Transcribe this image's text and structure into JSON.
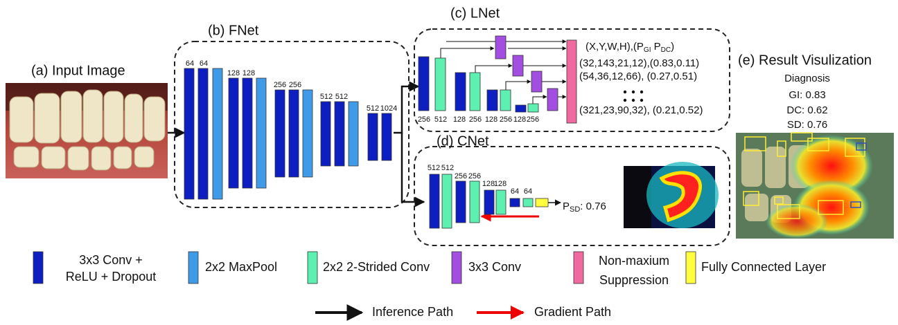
{
  "panels": {
    "input": "(a) Input Image",
    "fnet": "(b) FNet",
    "lnet": "(c) LNet",
    "cnet": "(d) CNet",
    "result": "(e) Result Visulization"
  },
  "fnet": {
    "channels": [
      "64",
      "64",
      "128",
      "128",
      "256",
      "256",
      "512",
      "512",
      "512",
      "1024"
    ]
  },
  "lnet": {
    "channels": [
      "256",
      "512",
      "128",
      "256",
      "128",
      "256",
      "128",
      "256"
    ],
    "output_header": {
      "open": "(X,Y,W,H),(",
      "p1": "P",
      "s1": "GI",
      "p2": " P",
      "s2": "DC",
      "close": ")"
    },
    "outputs": [
      "(32,143,21,12),(0.83,0.11)",
      "(54,36,12,66), (0.27,0.51)",
      "(321,23,90,32), (0.21,0.52)"
    ]
  },
  "cnet": {
    "channels": [
      "512",
      "512",
      "256",
      "256",
      "128",
      "128",
      "64",
      "64"
    ],
    "score": {
      "p": "P",
      "sub": "SD",
      "value": ": 0.76"
    }
  },
  "result": {
    "heading": "Diagnosis",
    "scores": [
      "GI: 0.83",
      "DC: 0.62",
      "SD: 0.76"
    ]
  },
  "legend": {
    "conv_relu": [
      "3x3 Conv +",
      "ReLU + Dropout"
    ],
    "maxpool": "2x2 MaxPool",
    "strided": "2x2 2-Strided Conv",
    "conv": "3x3 Conv",
    "nms": [
      "Non-maxium",
      "Suppression"
    ],
    "fc": "Fully Connected Layer"
  },
  "paths": {
    "inference": "Inference Path",
    "gradient": "Gradient Path"
  }
}
